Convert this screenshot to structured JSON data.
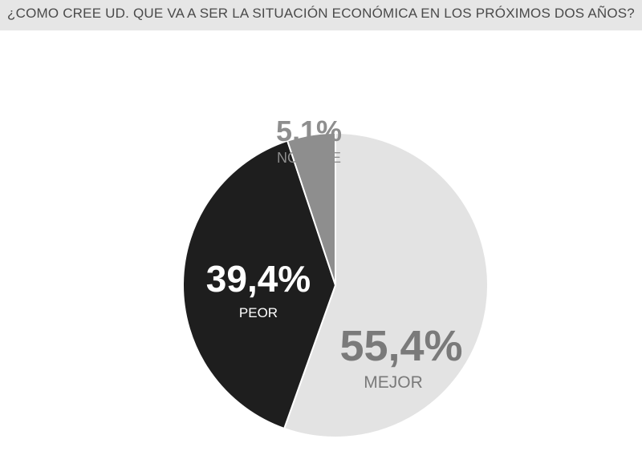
{
  "chart_data": {
    "type": "pie",
    "title": "¿COMO CREE UD. QUE VA A SER LA SITUACIÓN ECONÓMICA EN LOS PRÓXIMOS DOS AÑOS?",
    "slices": [
      {
        "label": "MEJOR",
        "value": 55.4,
        "value_label": "55,4%",
        "color": "#e3e3e3",
        "text_color": "#7a7a7a"
      },
      {
        "label": "PEOR",
        "value": 39.4,
        "value_label": "39,4%",
        "color": "#1e1e1e",
        "text_color": "#ffffff"
      },
      {
        "label": "NO SABE",
        "value": 5.1,
        "value_label": "5,1%",
        "color": "#8e8e8e",
        "text_color": "#8e8e8e"
      }
    ],
    "start": "12 o'clock",
    "direction": "clockwise",
    "legend": "none"
  }
}
